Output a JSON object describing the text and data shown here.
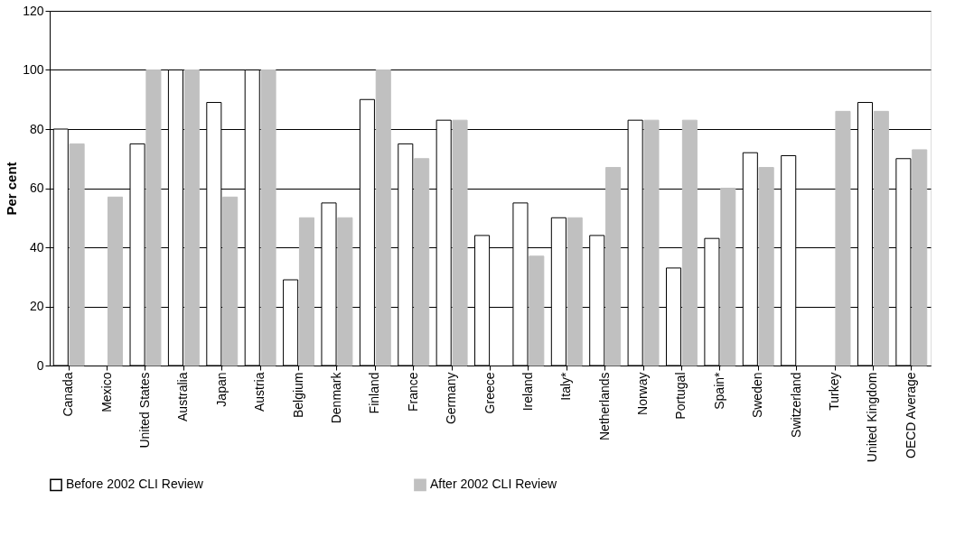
{
  "chart_data": {
    "type": "bar",
    "ylabel": "Per cent",
    "categories": [
      "Canada",
      "Mexico",
      "United States",
      "Australia",
      "Japan",
      "Austria",
      "Belgium",
      "Denmark",
      "Finland",
      "France",
      "Germany",
      "Greece",
      "Ireland",
      "Italy*",
      "Netherlands",
      "Norway",
      "Portugal",
      "Spain*",
      "Sweden",
      "Switzerland",
      "Turkey",
      "United Kingdom",
      "OECD Average"
    ],
    "series": [
      {
        "name": "Before 2002 CLI Review",
        "color": "#ffffff",
        "values": [
          80,
          null,
          75,
          100,
          89,
          100,
          29,
          55,
          90,
          75,
          83,
          44,
          55,
          50,
          44,
          83,
          33,
          43,
          72,
          71,
          null,
          89,
          70
        ]
      },
      {
        "name": "After 2002 CLI Review",
        "color": "#c0c0c0",
        "values": [
          75,
          57,
          100,
          100,
          57,
          100,
          50,
          50,
          100,
          70,
          83,
          null,
          37,
          50,
          67,
          83,
          83,
          60,
          67,
          null,
          86,
          86,
          73
        ]
      }
    ],
    "ylim": [
      0,
      120
    ],
    "yticks": [
      0,
      20,
      40,
      60,
      80,
      100,
      120
    ],
    "grid": "y",
    "legend": "bottom"
  }
}
